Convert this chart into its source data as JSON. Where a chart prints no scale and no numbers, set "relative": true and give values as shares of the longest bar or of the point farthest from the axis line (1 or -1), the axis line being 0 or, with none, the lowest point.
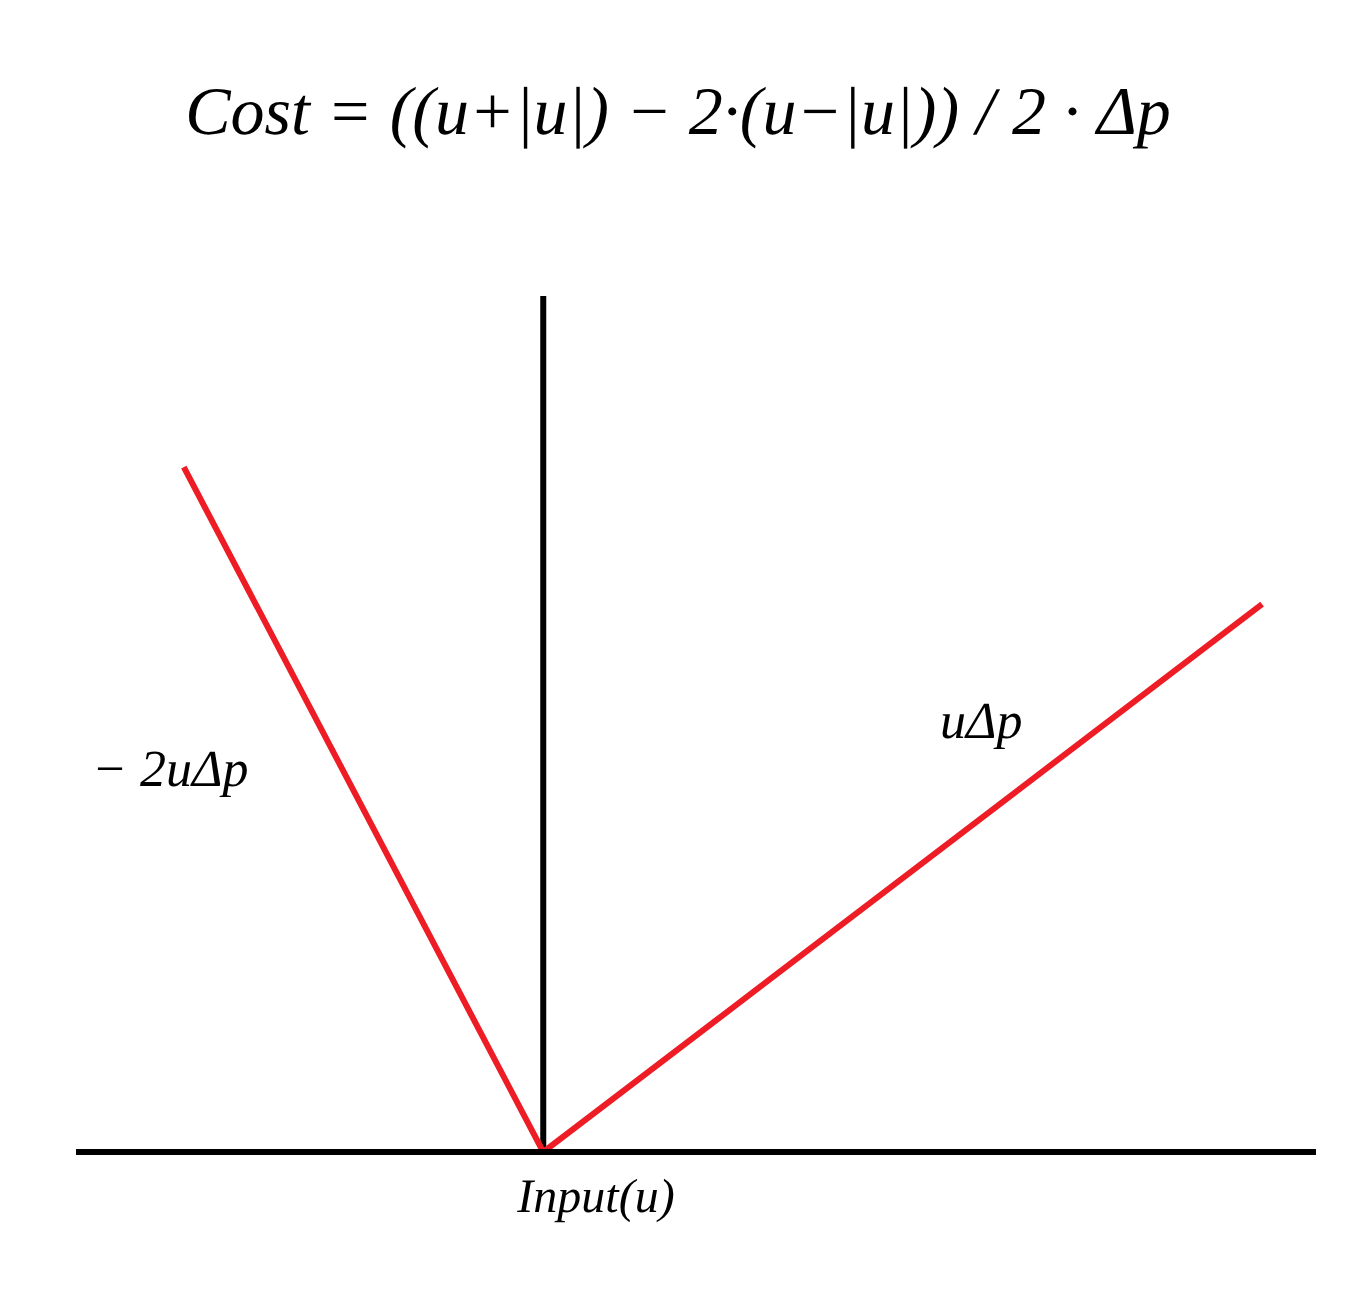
{
  "chart_data": {
    "type": "line",
    "relative": true,
    "title": "Cost = ((u+|u|) − 2·(u−|u|)) / 2 · Δp",
    "xlabel": "Input(u)",
    "categories": [
      null,
      null,
      null,
      null,
      null,
      null,
      null
    ],
    "series": [
      {
        "color": "#ee1c25",
        "values": [
          1,
          0.5,
          0,
          0.2,
          0.4,
          0.6,
          0.8
        ]
      }
    ],
    "annotations": [
      "− 2uΔp",
      "uΔp"
    ],
    "marker": "none",
    "line_style": "solid"
  }
}
